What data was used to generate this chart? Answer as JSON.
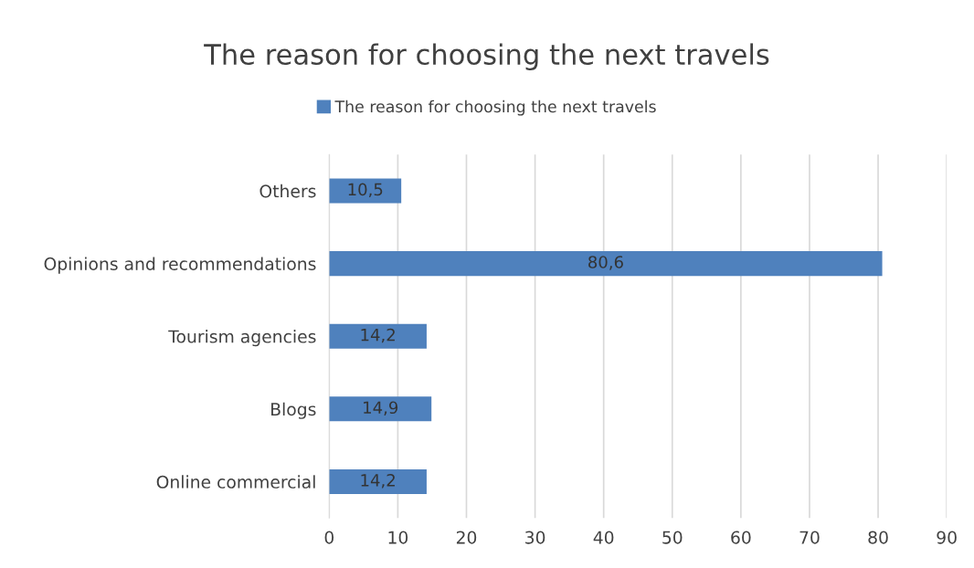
{
  "chart_data": {
    "type": "bar",
    "orientation": "horizontal",
    "title": "The reason for choosing the next travels",
    "categories": [
      "Others",
      "Opinions and recommendations",
      "Tourism agencies",
      "Blogs",
      "Online commercial"
    ],
    "series": [
      {
        "name": "The reason for choosing the next travels",
        "color": "#4f81bd",
        "values": [
          10.5,
          80.6,
          14.2,
          14.9,
          14.2
        ],
        "value_labels": [
          "10,5",
          "80,6",
          "14,2",
          "14,9",
          "14,2"
        ]
      }
    ],
    "xlim": [
      0,
      90
    ],
    "xticks": [
      0,
      10,
      20,
      30,
      40,
      50,
      60,
      70,
      80,
      90
    ],
    "grid": "x",
    "legend": "top"
  }
}
